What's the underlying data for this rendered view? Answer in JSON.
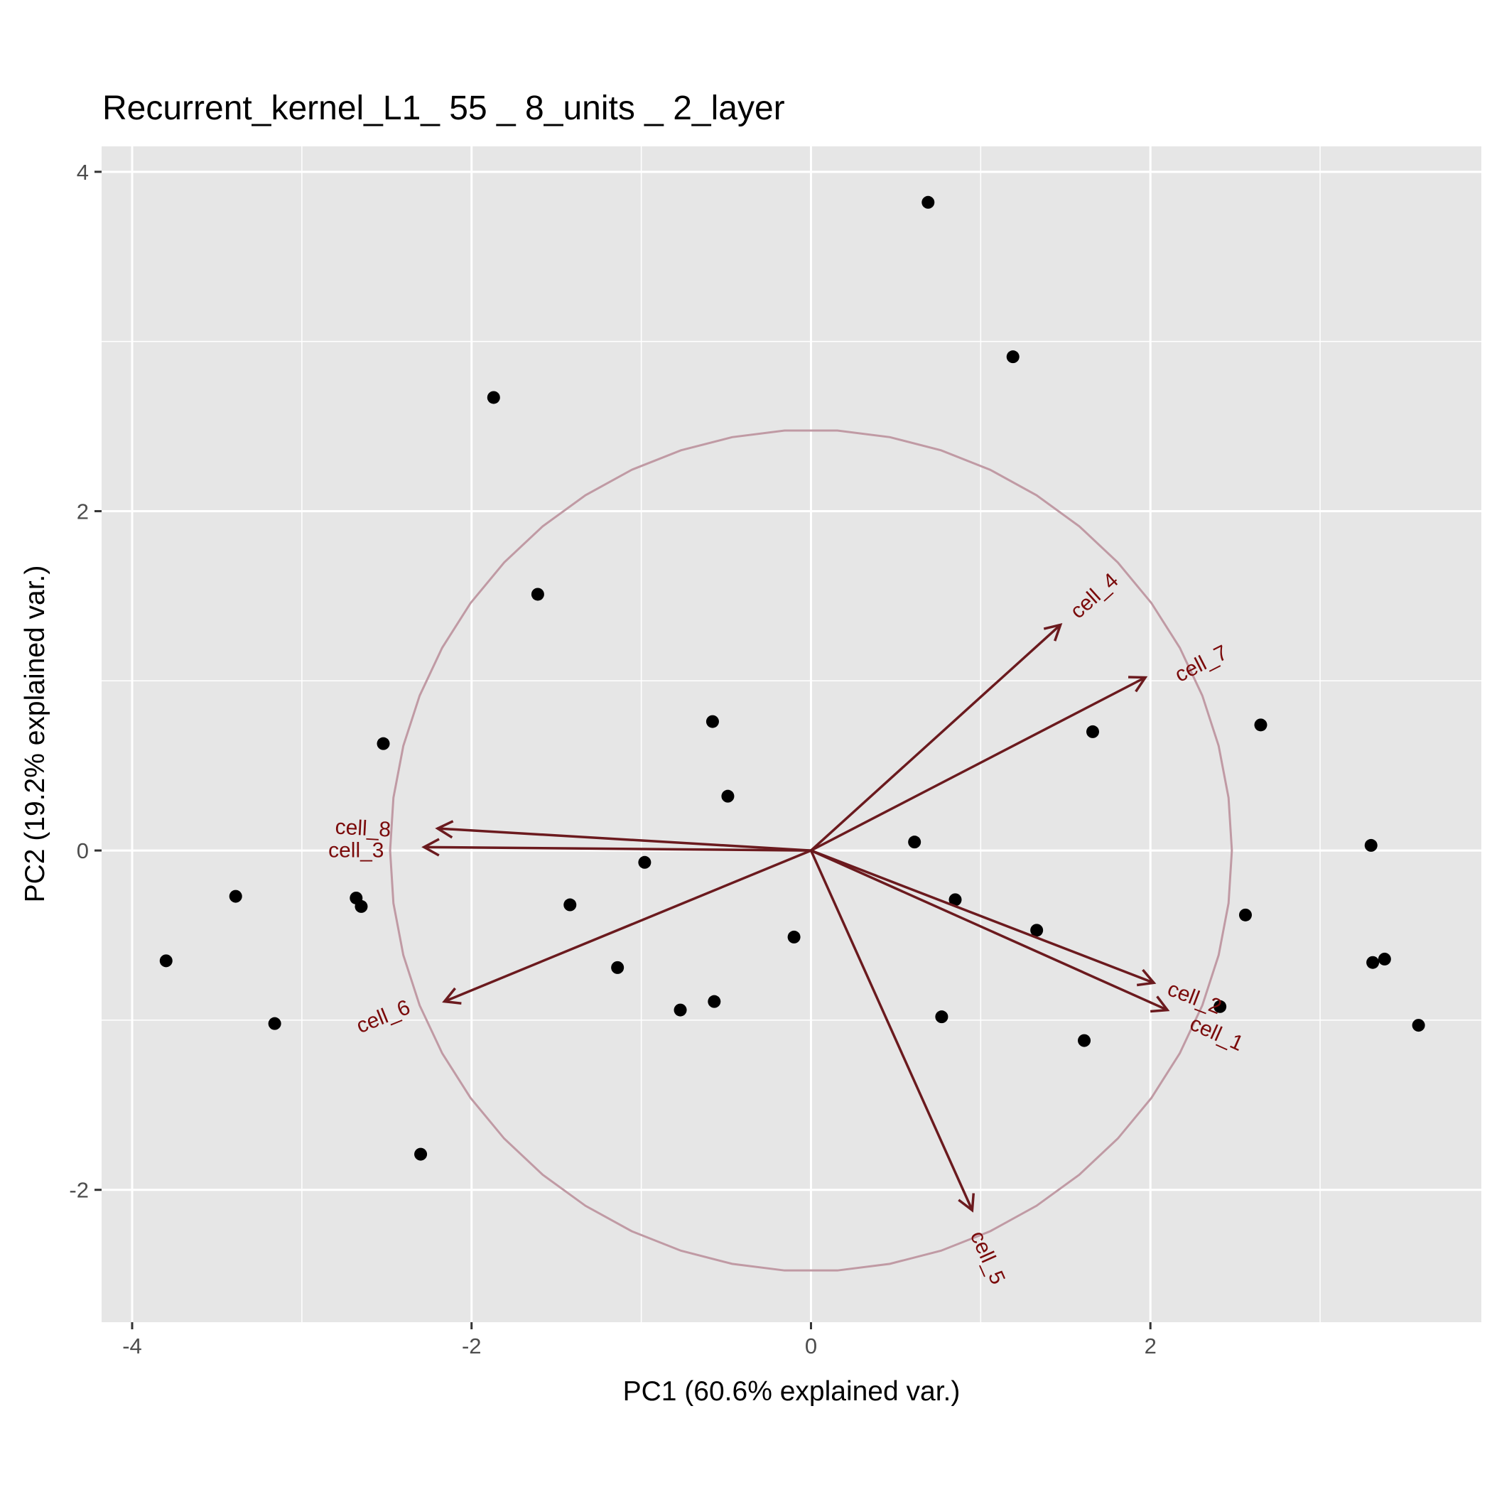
{
  "chart_data": {
    "type": "scatter",
    "title": "Recurrent_kernel_L1_ 55 _ 8_units _ 2_layer",
    "xlabel": "PC1 (60.6% explained var.)",
    "ylabel": "PC2 (19.2% explained var.)",
    "xlim": [
      -4.18,
      3.95
    ],
    "ylim": [
      -2.78,
      4.15
    ],
    "x_ticks": [
      -4,
      -2,
      0,
      2
    ],
    "y_ticks": [
      -2,
      0,
      2,
      4
    ],
    "x_tick_labels": [
      "-4",
      "-2",
      "0",
      "2"
    ],
    "y_tick_labels": [
      "-2",
      "0",
      "2",
      "4"
    ],
    "grid": true,
    "colors": {
      "panel": "#e6e6e6",
      "grid": "#ffffff",
      "points": "#000000",
      "arrows": "#6b1a1e",
      "labels": "#7a0a0a",
      "circle": "#c09aa4"
    },
    "circle_radius": 2.48,
    "points": [
      {
        "x": 0.69,
        "y": 3.82
      },
      {
        "x": 1.19,
        "y": 2.91
      },
      {
        "x": -1.87,
        "y": 2.67
      },
      {
        "x": -1.61,
        "y": 1.51
      },
      {
        "x": -0.58,
        "y": 0.76
      },
      {
        "x": 1.66,
        "y": 0.7
      },
      {
        "x": 2.65,
        "y": 0.74
      },
      {
        "x": -2.52,
        "y": 0.63
      },
      {
        "x": -0.49,
        "y": 0.32
      },
      {
        "x": 0.61,
        "y": 0.05
      },
      {
        "x": 3.3,
        "y": 0.03
      },
      {
        "x": -0.98,
        "y": -0.07
      },
      {
        "x": -3.39,
        "y": -0.27
      },
      {
        "x": -2.68,
        "y": -0.28
      },
      {
        "x": -2.65,
        "y": -0.33
      },
      {
        "x": -1.42,
        "y": -0.32
      },
      {
        "x": 0.85,
        "y": -0.29
      },
      {
        "x": 1.33,
        "y": -0.47
      },
      {
        "x": 2.56,
        "y": -0.38
      },
      {
        "x": -0.1,
        "y": -0.51
      },
      {
        "x": -3.8,
        "y": -0.65
      },
      {
        "x": -1.14,
        "y": -0.69
      },
      {
        "x": 3.31,
        "y": -0.66
      },
      {
        "x": 3.38,
        "y": -0.64
      },
      {
        "x": -3.16,
        "y": -1.02
      },
      {
        "x": -0.77,
        "y": -0.94
      },
      {
        "x": -0.57,
        "y": -0.89
      },
      {
        "x": 0.77,
        "y": -0.98
      },
      {
        "x": 2.41,
        "y": -0.92
      },
      {
        "x": 3.58,
        "y": -1.03
      },
      {
        "x": 1.61,
        "y": -1.12
      },
      {
        "x": -2.3,
        "y": -1.79
      }
    ],
    "variables": [
      {
        "name": "cell_4",
        "x": 1.47,
        "y": 1.33,
        "lx": 1.67,
        "ly": 1.5,
        "angle": -42
      },
      {
        "name": "cell_7",
        "x": 1.97,
        "y": 1.02,
        "lx": 2.3,
        "ly": 1.1,
        "angle": -27
      },
      {
        "name": "cell_8",
        "x": -2.2,
        "y": 0.13,
        "lx": -2.64,
        "ly": 0.13,
        "angle": 3
      },
      {
        "name": "cell_3",
        "x": -2.28,
        "y": 0.02,
        "lx": -2.68,
        "ly": 0.0,
        "angle": 0
      },
      {
        "name": "cell_6",
        "x": -2.16,
        "y": -0.89,
        "lx": -2.52,
        "ly": -0.98,
        "angle": -22
      },
      {
        "name": "cell_2",
        "x": 2.02,
        "y": -0.78,
        "lx": 2.26,
        "ly": -0.87,
        "angle": 21
      },
      {
        "name": "cell_1",
        "x": 2.1,
        "y": -0.94,
        "lx": 2.39,
        "ly": -1.08,
        "angle": 24
      },
      {
        "name": "cell_5",
        "x": 0.95,
        "y": -2.12,
        "lx": 1.04,
        "ly": -2.4,
        "angle": 66
      }
    ]
  }
}
